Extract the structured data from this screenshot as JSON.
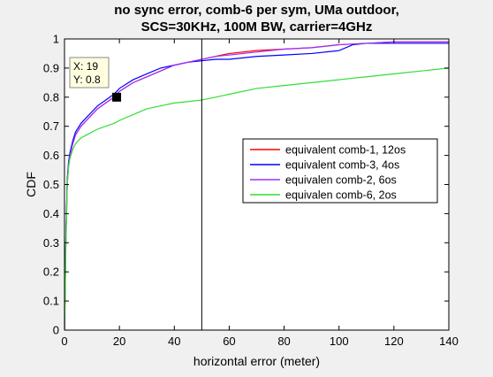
{
  "chart_data": {
    "type": "line",
    "title_lines": [
      "no sync error, comb-6 per sym, UMa outdoor,",
      "SCS=30KHz, 100M BW, carrier=4GHz"
    ],
    "xlabel": "horizontal error (meter)",
    "ylabel": "CDF",
    "xlim": [
      0,
      140
    ],
    "ylim": [
      0,
      1
    ],
    "x_ticks": [
      0,
      20,
      40,
      60,
      80,
      100,
      120,
      140
    ],
    "x_tick_labels": [
      "0",
      "20",
      "40",
      "60",
      "80",
      "100",
      "120",
      "140"
    ],
    "y_ticks": [
      0,
      0.1,
      0.2,
      0.3,
      0.4,
      0.5,
      0.6,
      0.7,
      0.8,
      0.9,
      1
    ],
    "y_tick_labels": [
      "0",
      "0.1",
      "0.2",
      "0.3",
      "0.4",
      "0.5",
      "0.6",
      "0.7",
      "0.8",
      "0.9",
      "1"
    ],
    "grid": false,
    "legend_position": "center-right",
    "series": [
      {
        "name": "equivalent comb-1, 12os",
        "color": "#ff0000",
        "x": [
          0,
          0.2,
          0.5,
          1,
          1.5,
          2,
          3,
          4,
          6,
          8,
          10,
          12,
          15,
          18,
          20,
          25,
          30,
          35,
          40,
          45,
          50,
          55,
          60,
          70,
          80,
          90,
          100,
          110,
          120,
          130,
          140
        ],
        "y": [
          0,
          0.12,
          0.3,
          0.5,
          0.57,
          0.6,
          0.64,
          0.67,
          0.7,
          0.72,
          0.74,
          0.76,
          0.78,
          0.8,
          0.82,
          0.85,
          0.87,
          0.89,
          0.91,
          0.92,
          0.93,
          0.94,
          0.95,
          0.96,
          0.965,
          0.97,
          0.98,
          0.985,
          0.99,
          0.99,
          0.99
        ]
      },
      {
        "name": "equivalent comb-3, 4os",
        "color": "#0000ff",
        "x": [
          0,
          0.2,
          0.5,
          1,
          1.5,
          2,
          3,
          4,
          6,
          8,
          10,
          12,
          15,
          18,
          20,
          25,
          30,
          35,
          40,
          45,
          50,
          55,
          60,
          65,
          70,
          80,
          90,
          100,
          105,
          110,
          120,
          130,
          140
        ],
        "y": [
          0,
          0.13,
          0.32,
          0.52,
          0.58,
          0.61,
          0.65,
          0.68,
          0.71,
          0.73,
          0.75,
          0.77,
          0.79,
          0.81,
          0.83,
          0.86,
          0.88,
          0.9,
          0.91,
          0.92,
          0.925,
          0.93,
          0.93,
          0.935,
          0.94,
          0.945,
          0.95,
          0.96,
          0.98,
          0.985,
          0.985,
          0.985,
          0.985
        ]
      },
      {
        "name": "equivalen comb-2, 6os",
        "color": "#9b30ff",
        "x": [
          0,
          0.2,
          0.5,
          1,
          1.5,
          2,
          3,
          4,
          6,
          8,
          10,
          12,
          15,
          18,
          20,
          25,
          30,
          35,
          40,
          45,
          50,
          55,
          60,
          70,
          80,
          90,
          100,
          110,
          120,
          130,
          140
        ],
        "y": [
          0,
          0.12,
          0.31,
          0.51,
          0.57,
          0.6,
          0.64,
          0.67,
          0.7,
          0.72,
          0.74,
          0.76,
          0.78,
          0.8,
          0.82,
          0.85,
          0.87,
          0.89,
          0.91,
          0.92,
          0.93,
          0.94,
          0.945,
          0.955,
          0.965,
          0.97,
          0.98,
          0.985,
          0.99,
          0.99,
          0.99
        ]
      },
      {
        "name": "equivalen comb-6, 2os",
        "color": "#33dd33",
        "x": [
          0,
          0.2,
          0.5,
          1,
          1.5,
          2,
          3,
          4,
          6,
          8,
          10,
          12,
          15,
          18,
          20,
          25,
          30,
          35,
          40,
          45,
          50,
          55,
          60,
          70,
          80,
          90,
          100,
          110,
          120,
          130,
          140
        ],
        "y": [
          0,
          0.1,
          0.28,
          0.5,
          0.56,
          0.59,
          0.62,
          0.64,
          0.66,
          0.67,
          0.68,
          0.69,
          0.7,
          0.71,
          0.72,
          0.74,
          0.76,
          0.77,
          0.78,
          0.785,
          0.79,
          0.8,
          0.81,
          0.83,
          0.84,
          0.85,
          0.86,
          0.87,
          0.88,
          0.89,
          0.9
        ]
      }
    ],
    "vertical_line": {
      "x": 50,
      "color": "#000000"
    },
    "datatip": {
      "x": 19,
      "y": 0.8,
      "label_x": "X: 19",
      "label_y": "Y: 0.8"
    }
  }
}
